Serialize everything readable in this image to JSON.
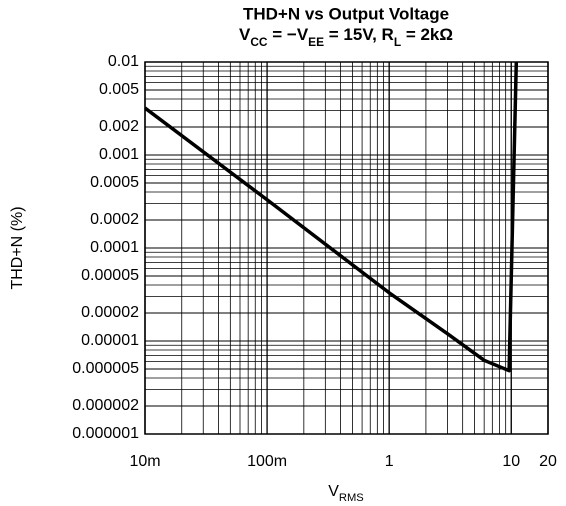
{
  "chart_data": {
    "type": "line",
    "title": "THD+N vs Output Voltage",
    "subtitle": [
      {
        "text": "V"
      },
      {
        "text": "CC",
        "sub": true
      },
      {
        "text": " = −V"
      },
      {
        "text": "EE",
        "sub": true
      },
      {
        "text": " = 15V, R"
      },
      {
        "text": "L",
        "sub": true
      },
      {
        "text": " = 2kΩ"
      }
    ],
    "x_label": [
      {
        "text": "V"
      },
      {
        "text": "RMS",
        "sub": true
      }
    ],
    "y_label": "THD+N (%)",
    "xscale": "log",
    "yscale": "log",
    "grid": true,
    "minor_grid": true,
    "xlim": [
      0.01,
      20
    ],
    "ylim": [
      1e-06,
      0.01
    ],
    "xticks": [
      {
        "value": 0.01,
        "label": "10m"
      },
      {
        "value": 0.1,
        "label": "100m"
      },
      1,
      10,
      20
    ],
    "yticks": [
      0.01,
      0.005,
      0.002,
      0.001,
      0.0005,
      0.0002,
      0.0001,
      5e-05,
      2e-05,
      1e-05,
      5e-06,
      2e-06,
      1e-06
    ],
    "series": [
      {
        "color": "#000000",
        "x": [
          0.01,
          0.1,
          1,
          3,
          6,
          9.6,
          11
        ],
        "values": [
          0.0032,
          0.00033,
          3.3e-05,
          1.2e-05,
          6.2e-06,
          4.8e-06,
          0.01
        ]
      }
    ]
  }
}
